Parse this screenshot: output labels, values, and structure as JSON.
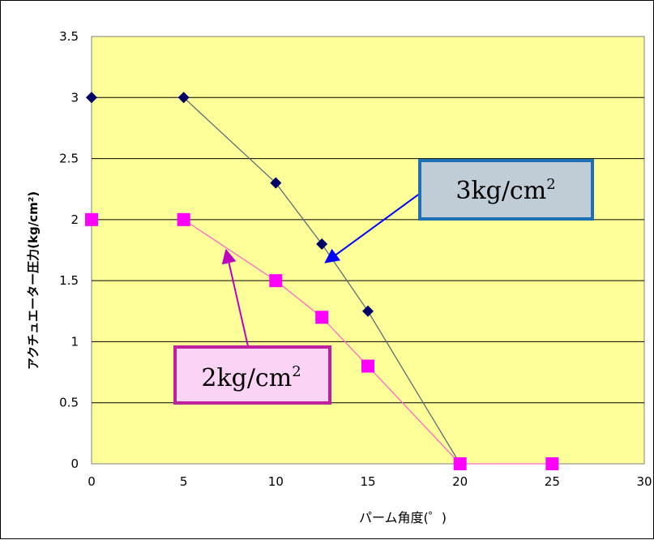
{
  "chart_data": {
    "type": "line",
    "xlabel": "パーム角度(゜)",
    "ylabel": "アクチュエーター圧力(kg/cm²)",
    "xlim": [
      0,
      30
    ],
    "ylim": [
      0,
      3.5
    ],
    "xticks": [
      "0",
      "5",
      "10",
      "15",
      "20",
      "25",
      "30"
    ],
    "yticks": [
      "0",
      "0.5",
      "1",
      "1.5",
      "2",
      "2.5",
      "3",
      "3.5"
    ],
    "grid": "horizontal",
    "background": "#ffff99",
    "series": [
      {
        "name": "3kg/cm²",
        "marker": "diamond",
        "color": "#000066",
        "line_color": "#5a6f7a",
        "x": [
          0,
          5,
          10,
          12.5,
          15
        ],
        "y": [
          3.0,
          3.0,
          2.3,
          1.8,
          1.25
        ],
        "line_x": [
          5,
          10,
          12.5,
          15,
          20
        ],
        "line_y": [
          3.0,
          2.3,
          1.8,
          1.25,
          0
        ]
      },
      {
        "name": "2kg/cm²",
        "marker": "square",
        "color": "#ff00ff",
        "line_color": "#ff66cc",
        "x": [
          0,
          5,
          10,
          12.5,
          15,
          20,
          25
        ],
        "y": [
          2.0,
          2.0,
          1.5,
          1.2,
          0.8,
          0,
          0
        ],
        "line_x": [
          5,
          10,
          12.5,
          15,
          20,
          25
        ],
        "line_y": [
          2.0,
          1.5,
          1.2,
          0.8,
          0,
          0
        ]
      }
    ],
    "annotations": [
      {
        "text": "3kg/cm",
        "sup": "2",
        "fill": "#c0cdd6",
        "border": "#1f6fb5",
        "arrow_color": "#0000ff",
        "arrow_to": [
          12.7,
          1.65
        ]
      },
      {
        "text": "2kg/cm",
        "sup": "2",
        "fill": "#fbd3f5",
        "border": "#c020a0",
        "arrow_color": "#c000c0",
        "arrow_to": [
          7.3,
          1.75
        ]
      }
    ]
  }
}
